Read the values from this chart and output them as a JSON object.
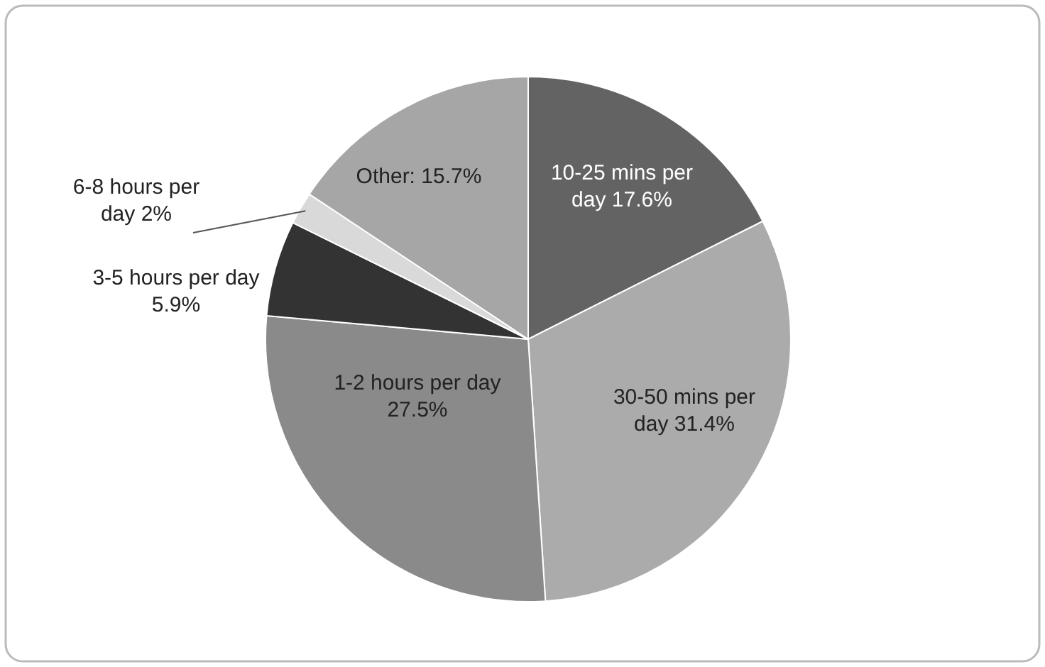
{
  "chart_data": {
    "type": "pie",
    "categories": [
      "10-25 mins per day",
      "30-50 mins per day",
      "1-2 hours per day",
      "3-5 hours per day",
      "6-8 hours per day",
      "Other"
    ],
    "values": [
      17.6,
      31.4,
      27.5,
      5.9,
      2,
      15.7
    ],
    "value_labels": [
      "17.6%",
      "31.4%",
      "27.5%",
      "5.9%",
      "2%",
      "15.7%"
    ],
    "colors": [
      "#636363",
      "#ababab",
      "#8a8a8a",
      "#333333",
      "#d9d9d9",
      "#a6a6a6"
    ]
  }
}
